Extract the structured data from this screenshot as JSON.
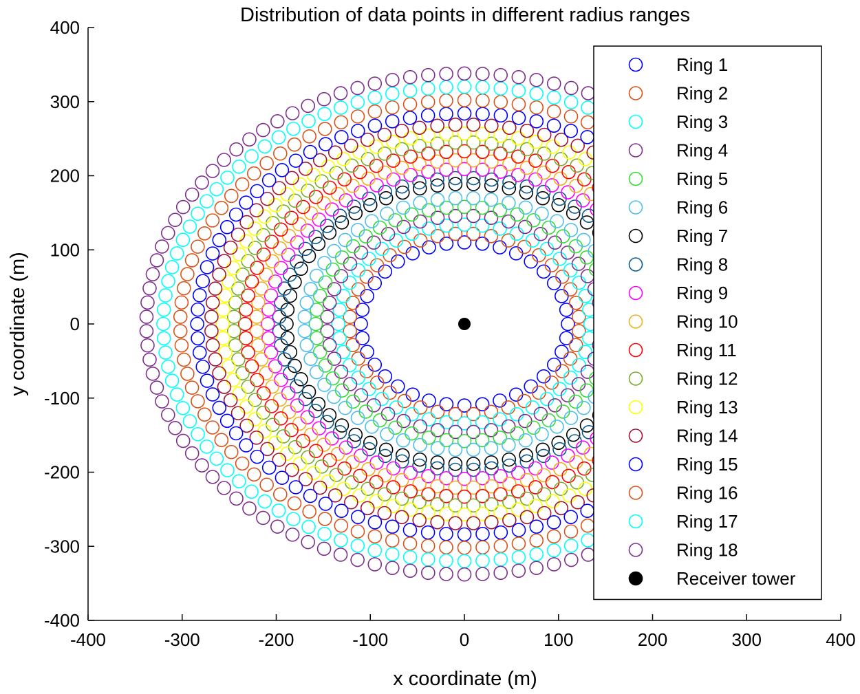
{
  "chart_data": {
    "type": "scatter",
    "title": "Distribution of data points in different radius ranges",
    "xlabel": "x coordinate (m)",
    "ylabel": "y coordinate (m)",
    "xlim": [
      -400,
      400
    ],
    "ylim": [
      -400,
      400
    ],
    "xticks": [
      -400,
      -300,
      -200,
      -100,
      0,
      100,
      200,
      300,
      400
    ],
    "yticks": [
      -400,
      -300,
      -200,
      -100,
      0,
      100,
      200,
      300,
      400
    ],
    "grid": false,
    "legend_position": "top-right",
    "marker": "open-circle",
    "series": [
      {
        "name": "Ring 1",
        "color": "#0000ff",
        "radius": 110,
        "points": 36
      },
      {
        "name": "Ring 2",
        "color": "#d95319",
        "radius": 122,
        "points": 40
      },
      {
        "name": "Ring 3",
        "color": "#00ffff",
        "radius": 134,
        "points": 44
      },
      {
        "name": "Ring 4",
        "color": "#7e2f8e",
        "radius": 146,
        "points": 48
      },
      {
        "name": "Ring 5",
        "color": "#33dd33",
        "radius": 158,
        "points": 52
      },
      {
        "name": "Ring 6",
        "color": "#4dbeee",
        "radius": 170,
        "points": 56
      },
      {
        "name": "Ring 7",
        "color": "#000000",
        "radius": 189,
        "points": 62
      },
      {
        "name": "Ring 8",
        "color": "#0b5a8c",
        "radius": 197,
        "points": 64
      },
      {
        "name": "Ring 9",
        "color": "#ff00ff",
        "radius": 209,
        "points": 68
      },
      {
        "name": "Ring 10",
        "color": "#edb120",
        "radius": 221,
        "points": 72
      },
      {
        "name": "Ring 11",
        "color": "#ff0000",
        "radius": 233,
        "points": 76
      },
      {
        "name": "Ring 12",
        "color": "#77ac30",
        "radius": 245,
        "points": 80
      },
      {
        "name": "Ring 13",
        "color": "#ffff00",
        "radius": 257,
        "points": 84
      },
      {
        "name": "Ring 14",
        "color": "#a2142f",
        "radius": 269,
        "points": 88
      },
      {
        "name": "Ring 15",
        "color": "#0000ff",
        "radius": 284,
        "points": 92
      },
      {
        "name": "Ring 16",
        "color": "#d95319",
        "radius": 302,
        "points": 98
      },
      {
        "name": "Ring 17",
        "color": "#00ffff",
        "radius": 320,
        "points": 104
      },
      {
        "name": "Ring 18",
        "color": "#7e2f8e",
        "radius": 338,
        "points": 110
      }
    ],
    "receiver": {
      "name": "Receiver tower",
      "x": 0,
      "y": 0,
      "color": "#000000"
    }
  }
}
